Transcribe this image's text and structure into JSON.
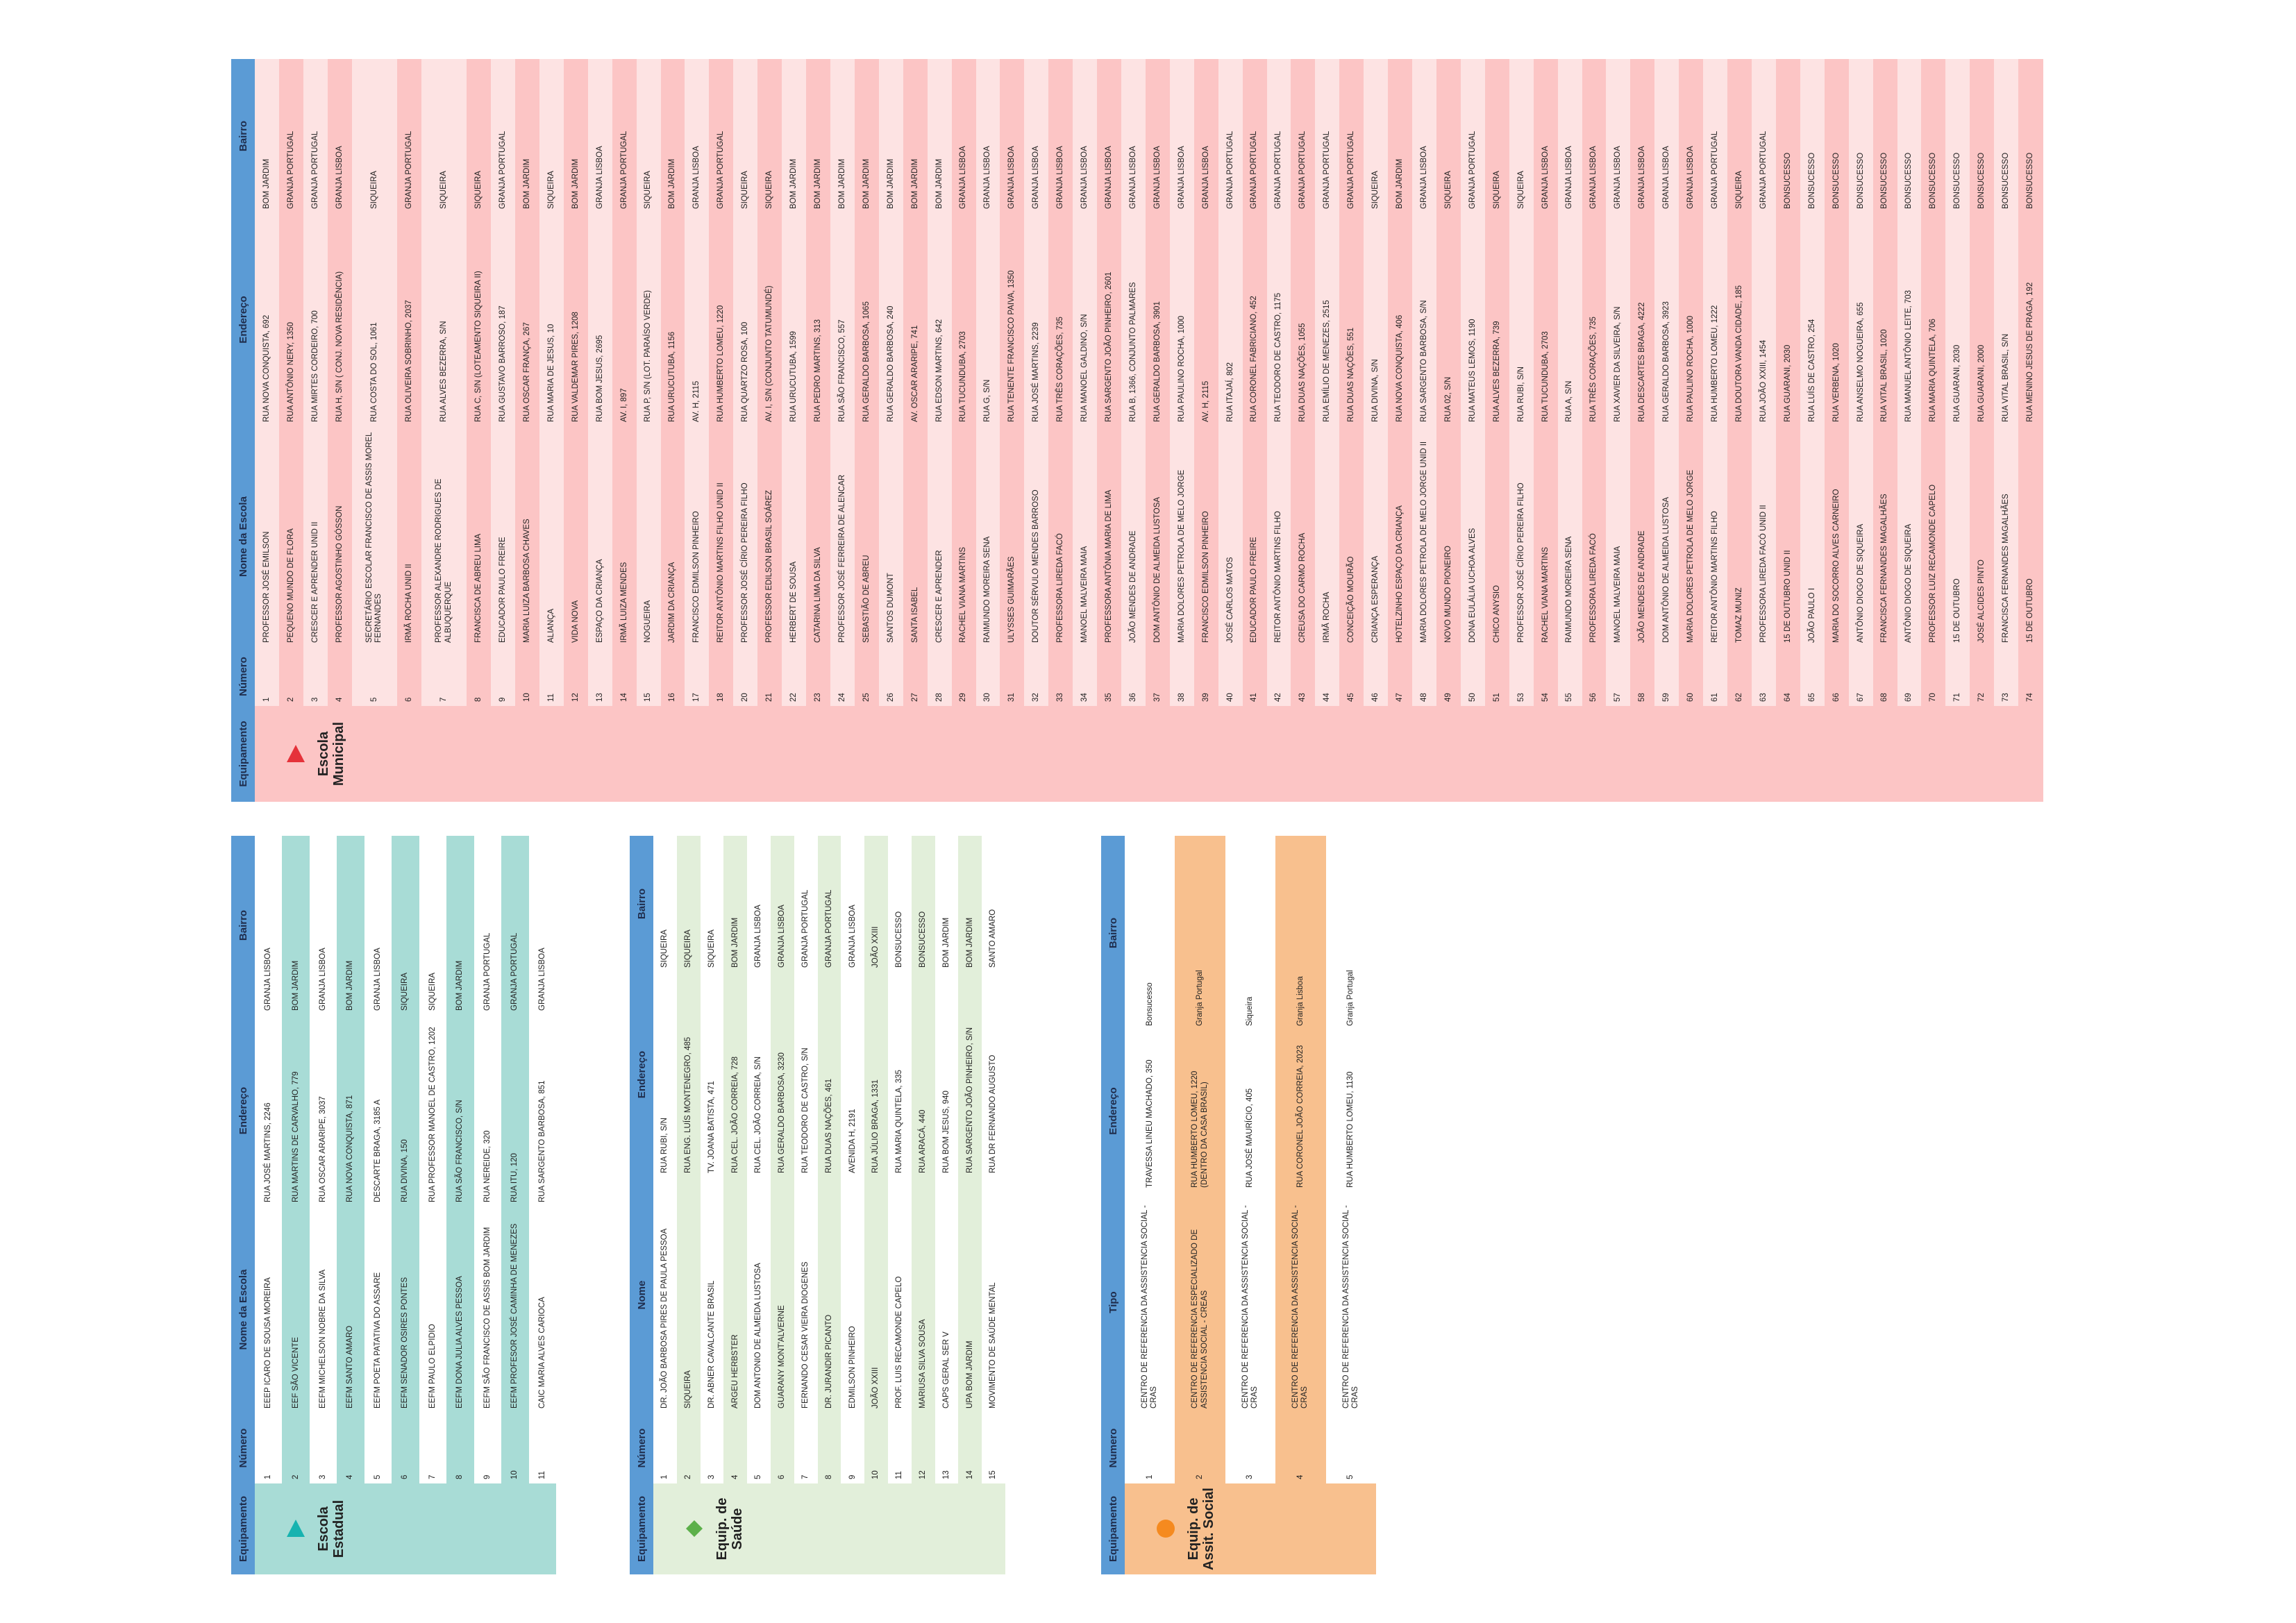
{
  "tables": [
    {
      "label": "Escola Estadual",
      "headers": [
        "Equipamento",
        "Número",
        "Nome da Escola",
        "Endereço",
        "Bairro"
      ],
      "rows": [
        [
          1,
          "EEEP ICARO DE SOUSA MOREIRA",
          "RUA JOSÉ MARTINS, 2246",
          "GRANJA LISBOA"
        ],
        [
          2,
          "EEF SÃO VICENTE",
          "RUA MARTINS DE CARVALHO, 779",
          "BOM JARDIM"
        ],
        [
          3,
          "EEFM MICHELSON NOBRE DA SILVA",
          "RUA OSCAR ARARIPE, 3037",
          "GRANJA LISBOA"
        ],
        [
          4,
          "EEFM SANTO AMARO",
          "RUA NOVA CONQUISTA, 871",
          "BOM JARDIM"
        ],
        [
          5,
          "EEFM POETA PATATIVA DO ASSARE",
          "DESCARTE BRAGA, 3185 A",
          "GRANJA LISBOA"
        ],
        [
          6,
          "EEFM SENADOR OSIRES PONTES",
          "RUA DIVINA, 150",
          "SIQUEIRA"
        ],
        [
          7,
          "EEFM PAULO ELPIDIO",
          "RUA PROFESSOR MANOEL DE CASTRO, 1202",
          "SIQUEIRA"
        ],
        [
          8,
          "EEFM DONA JULIA ALVES PESSOA",
          "RUA SÃO FRANCISCO, S/N",
          "BOM JARDIM"
        ],
        [
          9,
          "EEFM SÃO FRANCISCO DE ASSIS BOM JARDIM",
          "RUA NEREIDE, 320",
          "GRANJA PORTUGAL"
        ],
        [
          10,
          "EEFM PROFESOR JOSÉ CAMINHA DE MENEZES",
          "RUA ITU, 120",
          "GRANJA PORTUGAL"
        ],
        [
          11,
          "CAIC MARIA ALVES CARIOCA",
          "RUA SARGENTO BARBOSA, 851",
          "GRANJA LISBOA"
        ]
      ]
    },
    {
      "label": "Equip. de Saúde",
      "headers": [
        "Equipamento",
        "Número",
        "Nome",
        "Endereço",
        "Bairro"
      ],
      "rows": [
        [
          1,
          "DR. JOÃO BARBOSA PIRES DE PAULA PESSOA",
          "RUA RUBI, S/N",
          "SIQUEIRA"
        ],
        [
          2,
          "SIQUEIRA",
          "RUA ENG. LUÍS MONTENEGRO, 485",
          "SIQUEIRA"
        ],
        [
          3,
          "DR. ABNER CAVALCANTE BRASIL",
          "TV. JOANA BATISTA, 471",
          "SIQUEIRA"
        ],
        [
          4,
          "ARGEU HERBSTER",
          "RUA CEL. JOÃO CORREIA, 728",
          "BOM JARDIM"
        ],
        [
          5,
          "DOM ANTONIO DE ALMEIDA LUSTOSA",
          "RUA CEL. JOÃO CORREIA, S/N",
          "GRANJA LISBOA"
        ],
        [
          6,
          "GUARANY MONT'ALVERNE",
          "RUA GERALDO BARBOSA, 3230",
          "GRANJA LISBOA"
        ],
        [
          7,
          "FERNANDO CESAR VIEIRA DIOGENES",
          "RUA TEODORO DE CASTRO, S/N",
          "GRANJA PORTUGAL"
        ],
        [
          8,
          "DR. JURANDIR PICANTO",
          "RUA DUAS NAÇÕES, 461",
          "GRANJA PORTUGAL"
        ],
        [
          9,
          "EDMILSON PINHEIRO",
          "AVENIDA H, 2191",
          "GRANJA LISBOA"
        ],
        [
          10,
          "JOÃO XXIII",
          "RUA JÚLIO BRAGA, 1331",
          "JOÃO XXIII"
        ],
        [
          11,
          "PROF. LUIS RECAMONDE CAPELO",
          "RUA MARIA QUINTELA, 335",
          "BONSUCESSO"
        ],
        [
          12,
          "MARIUSA SILVA SOUSA",
          "RUA ARACÁ, 440",
          "BONSUCESSO"
        ],
        [
          13,
          "CAPS GERAL SER V",
          "RUA BOM JESUS, 940",
          "BOM JARDIM"
        ],
        [
          14,
          "UPA BOM JARDIM",
          "RUA SARGENTO JOÃO PINHEIRO, S/N",
          "BOM JARDIM"
        ],
        [
          15,
          "MOVIMENTO DE SAÚDE MENTAL",
          "RUA DR FERNANDO AUGUSTO",
          "SANTO AMARO"
        ]
      ]
    },
    {
      "label": "Equip. de Assit. Social",
      "headers": [
        "Equipamento",
        "Numero",
        "Tipo",
        "Endereço",
        "Bairro"
      ],
      "rows": [
        [
          1,
          "CENTRO DE REFERENCIA DA ASSISTENCIA SOCIAL - CRAS",
          "TRAVESSA LINEU MACHADO, 350",
          "Bonsucesso"
        ],
        [
          2,
          "CENTRO DE REFERENCIA ESPECIALIZADO DE ASSISTENCIA SOCIAL - CREAS",
          "RUA HUMBERTO LOMEU, 1220 (DENTRO DA CASA BRASIL)",
          "Granja Portugal"
        ],
        [
          3,
          "CENTRO DE REFERENCIA DA ASSISTENCIA SOCIAL - CRAS",
          "RUA JOSÉ MAURÍCIO, 405",
          "Siqueira"
        ],
        [
          4,
          "CENTRO DE REFERENCIA DA ASSISTENCIA SOCIAL - CRAS",
          "RUA CORONEL JOÃO CORREIA, 2023",
          "Granja Lisboa"
        ],
        [
          5,
          "CENTRO DE REFERENCIA DA ASSISTENCIA SOCIAL - CRAS",
          "RUA HUMBERTO LOMEU, 1130",
          "Granja Portugal"
        ]
      ]
    },
    {
      "label": "Escola Municipal",
      "headers": [
        "Equipamento",
        "Número",
        "Nome da Escola",
        "Endereço",
        "Bairro"
      ],
      "rows": [
        [
          1,
          "PROFESSOR JOSÉ EMILSON",
          "RUA NOVA CONQUISTA, 692",
          "BOM JARDIM"
        ],
        [
          2,
          "PEQUENO MUNDO DE FLORA",
          "RUA ANTÔNIO NERY, 1350",
          "GRANJA PORTUGAL"
        ],
        [
          3,
          "CRESCER E APRENDER UNID II",
          "RUA MIRTES CORDEIRO, 700",
          "GRANJA PORTUGAL"
        ],
        [
          4,
          "PROFESSOR AGOSTINHO GÓSSON",
          "RUA H, S/N ( CONJ. NOVA RESIDÊNCIA)",
          "GRANJA LISBOA"
        ],
        [
          5,
          "SECRETÁRIO ESCOLAR FRANCISCO DE ASSIS MOREL FERNANDES",
          "RUA COSTA DO SOL, 1061",
          "SIQUEIRA"
        ],
        [
          6,
          "IRMÃ ROCHA UNID II",
          "RUA OLIVEIRA SOBRINHO, 2037",
          "GRANJA PORTUGAL"
        ],
        [
          7,
          "PROFESSOR ALEXANDRE RODRIGUES DE ALBUQUERQUE",
          "RUA ALVES BEZERRA, S/N",
          "SIQUEIRA"
        ],
        [
          8,
          "FRANCISCA DE ABREU LIMA",
          "RUA C, S/N (LOTEAMENTO SIQUEIRA II)",
          "SIQUEIRA"
        ],
        [
          9,
          "EDUCADOR PAULO FREIRE",
          "RUA GUSTAVO BARROSO, 187",
          "GRANJA PORTUGAL"
        ],
        [
          10,
          "MARIA LUIZA BARBOSA CHAVES",
          "RUA OSCAR FRANÇA, 267",
          "BOM JARDIM"
        ],
        [
          11,
          "ALIANÇA",
          "RUA MARIA DE JESUS, 10",
          "SIQUEIRA"
        ],
        [
          12,
          "VIDA NOVA",
          "RUA VALDEMAR PIRES, 1208",
          "BOM JARDIM"
        ],
        [
          13,
          "ESPAÇO DA CRIANÇA",
          "RUA BOM JESUS, 2695",
          "GRANJA LISBOA"
        ],
        [
          14,
          "IRMÃ LUIZA MENDES",
          "AV. I, 897",
          "GRANJA PORTUGAL"
        ],
        [
          15,
          "NOGUEIRA",
          "RUA P, S/N (LOT. PARAÍSO VERDE)",
          "SIQUEIRA"
        ],
        [
          16,
          "JARDIM DA CRIANÇA",
          "RUA URUCUTUBA, 1156",
          "BOM JARDIM"
        ],
        [
          17,
          "FRANCISCO EDMILSON PINHEIRO",
          "AV. H, 2115",
          "GRANJA LISBOA"
        ],
        [
          18,
          "REITOR ANTÔNIO MARTINS FILHO UNID II",
          "RUA HUMBERTO LOMEU, 1220",
          "GRANJA PORTUGAL"
        ],
        [
          20,
          "PROFESSOR JOSÉ CÍRIO PEREIRA FILHO",
          "RUA QUARTZO ROSA, 100",
          "SIQUEIRA"
        ],
        [
          21,
          "PROFESSOR EDILSON BRASIL SOÁREZ",
          "AV. I, S/N (CONJUNTO TATUMUNDÉ)",
          "SIQUEIRA"
        ],
        [
          22,
          "HERBERT DE SOUSA",
          "RUA URUCUTUBA, 1599",
          "BOM JARDIM"
        ],
        [
          23,
          "CATARINA LIMA DA SILVA",
          "RUA PEDRO MARTINS, 313",
          "BOM JARDIM"
        ],
        [
          24,
          "PROFESSOR JOSÉ FERREIRA DE ALENCAR",
          "RUA SÃO FRANCISCO, 557",
          "BOM JARDIM"
        ],
        [
          25,
          "SEBASTIÃO DE ABREU",
          "RUA GERALDO BARBOSA, 1065",
          "BOM JARDIM"
        ],
        [
          26,
          "SANTOS DUMONT",
          "RUA GERALDO BARBOSA, 240",
          "BOM JARDIM"
        ],
        [
          27,
          "SANTA ISABEL",
          "AV. OSCAR ARARIPE, 741",
          "BOM JARDIM"
        ],
        [
          28,
          "CRESCER E APRENDER",
          "RUA EDSON MARTINS, 642",
          "BOM JARDIM"
        ],
        [
          29,
          "RACHEL VIANA MARTINS",
          "RUA TUCUNDUBA, 2703",
          "GRANJA LISBOA"
        ],
        [
          30,
          "RAIMUNDO MOREIRA SENA",
          "RUA G, S/N",
          "GRANJA LISBOA"
        ],
        [
          31,
          "ULYSSES GUIMARÃES",
          "RUA TENENTE FRANCISCO PAIVA, 1350",
          "GRANJA LISBOA"
        ],
        [
          32,
          "DOUTOR SÉRVULO MENDES BARROSO",
          "RUA JOSÉ MARTINS, 2239",
          "GRANJA LISBOA"
        ],
        [
          33,
          "PROFESSORA LIREDA FACÓ",
          "RUA TRÊS CORAÇÕES, 735",
          "GRANJA LISBOA"
        ],
        [
          34,
          "MANOEL MALVEIRA MAIA",
          "RUA MANOEL GALDINO, S/N",
          "GRANJA LISBOA"
        ],
        [
          35,
          "PROFESSORA ANTÔNIA MARIA DE LIMA",
          "RUA SARGENTO JOÃO PINHEIRO, 2601",
          "GRANJA LISBOA"
        ],
        [
          36,
          "JOÃO MENDES DE ANDRADE",
          "RUA B, 1366, CONJUNTO PALMARES",
          "GRANJA LISBOA"
        ],
        [
          37,
          "DOM ANTÔNIO DE ALMEIDA LUSTOSA",
          "RUA GERALDO BARBOSA, 3901",
          "GRANJA LISBOA"
        ],
        [
          38,
          "MARIA DOLORES PETROLA DE MELO JORGE",
          "RUA PAULINO ROCHA, 1000",
          "GRANJA LISBOA"
        ],
        [
          39,
          "FRANCISCO EDMILSON PINHEIRO",
          "AV. H, 2115",
          "GRANJA LISBOA"
        ],
        [
          40,
          "JOSÉ CARLOS MATOS",
          "RUA ITAJAÍ, 802",
          "GRANJA PORTUGAL"
        ],
        [
          41,
          "EDUCADOR PAULO FREIRE",
          "RUA CORONEL FABRICIANO, 452",
          "GRANJA PORTUGAL"
        ],
        [
          42,
          "REITOR ANTÔNIO MARTINS FILHO",
          "RUA TEODORO DE CASTRO, 1175",
          "GRANJA PORTUGAL"
        ],
        [
          43,
          "CREUSA DO CARMO ROCHA",
          "RUA DUAS NAÇÕES, 1055",
          "GRANJA PORTUGAL"
        ],
        [
          44,
          "IRMÃ ROCHA",
          "RUA EMÍLIO DE MENEZES, 2515",
          "GRANJA PORTUGAL"
        ],
        [
          45,
          "CONCEIÇÃO MOURÃO",
          "RUA DUAS NAÇÕES, 551",
          "GRANJA PORTUGAL"
        ],
        [
          46,
          "CRIANÇA ESPERANÇA",
          "RUA DIVINA, S/N",
          "SIQUEIRA"
        ],
        [
          47,
          "HOTELZINHO ESPAÇO DA CRIANÇA",
          "RUA NOVA CONQUISTA, 406",
          "BOM JARDIM"
        ],
        [
          48,
          "MARIA DOLORES PETROLA DE MELO JORGE UNID II",
          "RUA SARGENTO BARBOSA, S/N",
          "GRANJA LISBOA"
        ],
        [
          49,
          "NOVO MUNDO PIONEIRO",
          "RUA 02, S/N",
          "SIQUEIRA"
        ],
        [
          50,
          "DONA EULÁLIA UCHOA ALVES",
          "RUA MATEUS LEMOS, 1190",
          "GRANJA PORTUGAL"
        ],
        [
          51,
          "CHICO ANYSIO",
          "RUA ALVES BEZERRA, 739",
          "SIQUEIRA"
        ],
        [
          53,
          "PROFESSOR JOSÉ CÍRIO PEREIRA FILHO",
          "RUA RUBI, S/N",
          "SIQUEIRA"
        ],
        [
          54,
          "RACHEL VIANA MARTINS",
          "RUA TUCUNDUBA, 2703",
          "GRANJA LISBOA"
        ],
        [
          55,
          "RAIMUNDO MOREIRA SENA",
          "RUA A, S/N",
          "GRANJA LISBOA"
        ],
        [
          56,
          "PROFESSORA LIREDA FACÓ",
          "RUA TRÊS CORAÇÕES, 735",
          "GRANJA LISBOA"
        ],
        [
          57,
          "MANOEL MALVEIRA MAIA",
          "RUA XAVIER DA SILVEIRA, S/N",
          "GRANJA LISBOA"
        ],
        [
          58,
          "JOÃO MENDES DE ANDRADE",
          "RUA DESCARTES BRAGA, 4222",
          "GRANJA LISBOA"
        ],
        [
          59,
          "DOM ANTÔNIO DE ALMEIDA LUSTOSA",
          "RUA GERALDO BARBOSA, 3923",
          "GRANJA LISBOA"
        ],
        [
          60,
          "MARIA DOLORES PETROLA DE MELO JORGE",
          "RUA PAULINO ROCHA, 1000",
          "GRANJA LISBOA"
        ],
        [
          61,
          "REITOR ANTÔNIO MARTINS FILHO",
          "RUA HUMBERTO LOMEU, 1222",
          "GRANJA PORTUGAL"
        ],
        [
          62,
          "TOMAZ MUNIZ",
          "RUA DOUTORA VANDA CIDADE, 185",
          "SIQUEIRA"
        ],
        [
          63,
          "PROFESSORA LIREDA FACÓ UNID II",
          "RUA JOÃO XXIII, 1454",
          "GRANJA PORTUGAL"
        ],
        [
          64,
          "15 DE OUTUBRO UNID II",
          "RUA GUARANI, 2030",
          "BONSUCESSO"
        ],
        [
          65,
          "JOÃO PAULO I",
          "RUA LUÍS DE CASTRO, 254",
          "BONSUCESSO"
        ],
        [
          66,
          "MARIA DO SOCORRO ALVES CARNEIRO",
          "RUA VERBENA, 1020",
          "BONSUCESSO"
        ],
        [
          67,
          "ANTÔNIO DIOGO DE SIQUEIRA",
          "RUA ANSELMO NOGUEIRA, 655",
          "BONSUCESSO"
        ],
        [
          68,
          "FRANCISCA FERNANDES MAGALHÃES",
          "RUA VITAL BRASIL, 1020",
          "BONSUCESSO"
        ],
        [
          69,
          "ANTÔNIO DIOGO DE SIQUEIRA",
          "RUA MANUEL ANTÔNIO LEITE, 703",
          "BONSUCESSO"
        ],
        [
          70,
          "PROFESSOR LUIZ RECAMONDE CAPELO",
          "RUA MARIA QUINTELA, 706",
          "BONSUCESSO"
        ],
        [
          71,
          "15 DE OUTUBRO",
          "RUA GUARANI, 2030",
          "BONSUCESSO"
        ],
        [
          72,
          "JOSÉ ALCIDES PINTO",
          "RUA GUARANI, 2000",
          "BONSUCESSO"
        ],
        [
          73,
          "FRANCISCA FERNANDES MAGALHÃES",
          "RUA VITAL BRASIL, S/N",
          "BONSUCESSO"
        ],
        [
          74,
          "15 DE OUTUBRO",
          "RUA MENINO JESUS DE PRAGA, 192",
          "BONSUCESSO"
        ]
      ]
    }
  ]
}
